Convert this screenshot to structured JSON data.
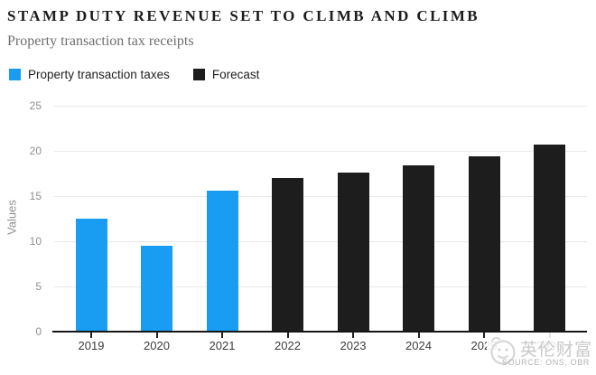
{
  "header": {
    "title": "STAMP DUTY REVENUE SET TO CLIMB AND CLIMB",
    "subtitle": "Property transaction tax receipts"
  },
  "legend": {
    "items": [
      {
        "label": "Property transaction taxes",
        "color": "#189df2"
      },
      {
        "label": "Forecast",
        "color": "#1d1d1d"
      }
    ]
  },
  "chart_data": {
    "type": "bar",
    "title": "Property transaction tax receipts",
    "categories": [
      "2019",
      "2020",
      "2021",
      "2022",
      "2023",
      "2024",
      "2025",
      "2026"
    ],
    "series": [
      {
        "name": "Property transaction taxes",
        "color": "#189df2",
        "values": [
          12.5,
          9.5,
          15.6,
          null,
          null,
          null,
          null,
          null
        ]
      },
      {
        "name": "Forecast",
        "color": "#1d1d1d",
        "values": [
          null,
          null,
          null,
          17.0,
          17.6,
          18.4,
          19.4,
          20.7
        ]
      }
    ],
    "xlabel": "",
    "ylabel": "Values",
    "ylim": [
      0,
      25
    ],
    "yticks": [
      0,
      5,
      10,
      15,
      20,
      25
    ],
    "grid": true,
    "legend_position": "top"
  },
  "watermark": {
    "logo_icon": "whale-logo-icon",
    "brand": "英伦财富",
    "source": "SOURCE: ONS, OBR"
  },
  "colors": {
    "accent_blue": "#189df2",
    "forecast_black": "#1d1d1d",
    "gridline": "#e9e9e9",
    "axis": "#161616",
    "tick_text": "#8f8f8f",
    "category_text": "#3d3d3d",
    "watermark_gray": "#c9c9c9"
  }
}
